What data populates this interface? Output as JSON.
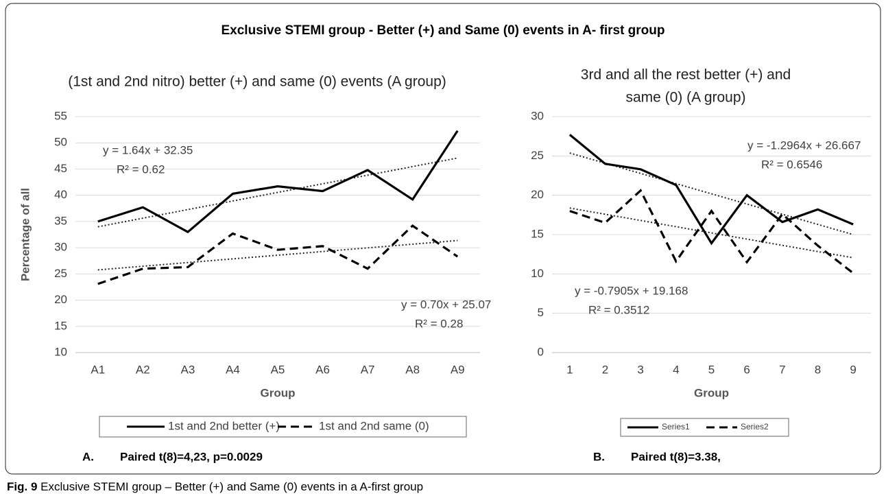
{
  "title": "Exclusive STEMI group - Better (+) and Same (0) events in A- first group",
  "caption": {
    "label": "Fig. 9",
    "text": "Exclusive STEMI group – Better (+) and Same (0) events in a A-first group"
  },
  "chart_data": [
    {
      "type": "line",
      "title": "(1st and 2nd nitro) better (+) and same (0) events (A group)",
      "x_label": "Group",
      "y_label": "Percentage of all",
      "categories": [
        "A1",
        "A2",
        "A3",
        "A4",
        "A5",
        "A6",
        "A7",
        "A8",
        "A9"
      ],
      "series": [
        {
          "name": "1st and 2nd better (+)",
          "color": "#000000",
          "line_style": "solid",
          "values": [
            35,
            37.7,
            33,
            40.3,
            41.7,
            40.8,
            44.8,
            39.2,
            52.3
          ]
        },
        {
          "name": "1st and 2nd same (0)",
          "color": "#000000",
          "line_style": "dashed",
          "values": [
            23.1,
            26,
            26.3,
            32.7,
            29.6,
            30.3,
            26,
            34.2,
            28.3
          ]
        }
      ],
      "trendlines": [
        {
          "slope": 1.64,
          "intercept": 32.35,
          "equation": "y = 1.64x + 32.35",
          "r2": "R² = 0.62"
        },
        {
          "slope": 0.7,
          "intercept": 25.07,
          "equation": "y = 0.70x + 25.07",
          "r2": "R² = 0.28"
        }
      ],
      "ylim": [
        10,
        55
      ],
      "yticks": [
        10,
        15,
        20,
        25,
        30,
        35,
        40,
        45,
        50,
        55
      ],
      "grid": true,
      "legend": "bottom",
      "note": {
        "label": "A.",
        "text": "Paired t(8)=4,23, p=0.0029"
      }
    },
    {
      "type": "line",
      "title": [
        "3rd and all the rest better (+) and",
        "same (0) (A group)"
      ],
      "x_label": "Group",
      "x": [
        1,
        2,
        3,
        4,
        5,
        6,
        7,
        8,
        9
      ],
      "series": [
        {
          "name": "Series1",
          "color": "#000000",
          "line_style": "solid",
          "values": [
            27.7,
            24,
            23.3,
            21.3,
            13.9,
            20,
            16.6,
            18.2,
            16.3
          ]
        },
        {
          "name": "Series2",
          "color": "#000000",
          "line_style": "dashed",
          "values": [
            18,
            16.5,
            20.6,
            11.6,
            18,
            11.5,
            17.6,
            13.6,
            10.1
          ]
        }
      ],
      "trendlines": [
        {
          "slope": -1.2964,
          "intercept": 26.667,
          "equation": "y = -1.2964x + 26.667",
          "r2": "R² = 0.6546"
        },
        {
          "slope": -0.7905,
          "intercept": 19.168,
          "equation": "y = -0.7905x + 19.168",
          "r2": "R² = 0.3512"
        }
      ],
      "xlim": [
        0.5,
        9.5
      ],
      "xticks": [
        1,
        2,
        3,
        4,
        5,
        6,
        7,
        8,
        9
      ],
      "ylim": [
        0,
        30
      ],
      "yticks": [
        0,
        5,
        10,
        15,
        20,
        25,
        30
      ],
      "grid": true,
      "legend": "bottom",
      "note": {
        "label": "B.",
        "text": "Paired t(8)=3.38,"
      }
    }
  ]
}
